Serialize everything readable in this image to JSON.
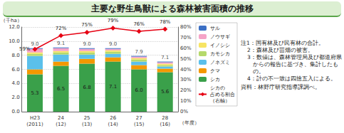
{
  "chart_data": {
    "type": "bar",
    "title": "主要な野生鳥獣による森林被害面積の推移",
    "stacked": true,
    "grid": true,
    "legend": "right",
    "categories": [
      "H23\n(2011)",
      "24\n(12)",
      "25\n(13)",
      "26\n(14)",
      "27\n(15)",
      "28\n(16)"
    ],
    "x_label": "（年度）",
    "y_label": "（千ha）",
    "ylim": [
      0,
      12
    ],
    "yticks": [
      {
        "value": 0,
        "label": "0.0"
      },
      {
        "value": 2,
        "label": "2.0"
      },
      {
        "value": 4,
        "label": "4.0"
      },
      {
        "value": 6,
        "label": "6.0"
      },
      {
        "value": 8,
        "label": "8.0"
      },
      {
        "value": 10,
        "label": "10.0"
      },
      {
        "value": 12,
        "label": "12.0"
      }
    ],
    "y2lim": [
      0,
      80
    ],
    "y2ticks": [
      {
        "value": 0,
        "label": "0%"
      },
      {
        "value": 10,
        "label": "10%"
      },
      {
        "value": 20,
        "label": "20%"
      },
      {
        "value": 30,
        "label": "30%"
      },
      {
        "value": 40,
        "label": "40%"
      },
      {
        "value": 50,
        "label": "50%"
      },
      {
        "value": 60,
        "label": "60%"
      },
      {
        "value": 70,
        "label": "70%"
      },
      {
        "value": 80,
        "label": "80%"
      }
    ],
    "series": [
      {
        "name": "シカ",
        "color": "#3aa04a",
        "values": [
          5.3,
          6.5,
          6.8,
          7.1,
          6.0,
          5.6
        ],
        "data_labels": true,
        "value_labels": [
          "5.3",
          "6.5",
          "6.8",
          "7.1",
          "6.0",
          "5.6"
        ]
      },
      {
        "name": "クマ",
        "color": "#f39800",
        "values": [
          0.7,
          0.6,
          0.7,
          0.6,
          0.6,
          0.5
        ]
      },
      {
        "name": "ノネズミ",
        "color": "#5bc0eb",
        "values": [
          1.9,
          1.0,
          0.6,
          0.5,
          0.5,
          0.3
        ]
      },
      {
        "name": "カモシカ",
        "color": "#b5d96b",
        "values": [
          0.3,
          0.3,
          0.3,
          0.3,
          0.3,
          0.2
        ]
      },
      {
        "name": "イノシシ",
        "color": "#f7e463",
        "values": [
          0.2,
          0.2,
          0.2,
          0.2,
          0.2,
          0.2
        ]
      },
      {
        "name": "ノウサギ",
        "color": "#f5a3c7",
        "values": [
          0.5,
          0.4,
          0.3,
          0.2,
          0.2,
          0.2
        ]
      },
      {
        "name": "サル",
        "color": "#3b6fc4",
        "values": [
          0.1,
          0.1,
          0.1,
          0.1,
          0.1,
          0.1
        ]
      },
      {
        "name": "シカの\n占める割合\n（右軸）",
        "type": "line",
        "axis": "y2",
        "color": "#e60012",
        "marker": "diamond",
        "data_labels": true,
        "values": [
          59,
          72,
          75,
          79,
          76,
          78
        ],
        "value_labels": [
          "59%",
          "72%",
          "75%",
          "79%",
          "76%",
          "78%"
        ]
      }
    ],
    "totals": {
      "values": [
        9.0,
        9.1,
        9.0,
        9.0,
        7.9,
        7.1
      ],
      "value_labels": [
        "9.0",
        "9.1",
        "9.0",
        "9.0",
        "7.9",
        "7.1"
      ]
    },
    "notes": [
      "注1：国有林及び民有林の合計。",
      "2：森林及び苗畑の被害。",
      "3：数値は、森林管理局及び都道府県からの報告に基づき、集計したもの。",
      "4：計の不一致は四捨五入による。"
    ],
    "source": "資料：林野庁研究指導課調べ。"
  }
}
